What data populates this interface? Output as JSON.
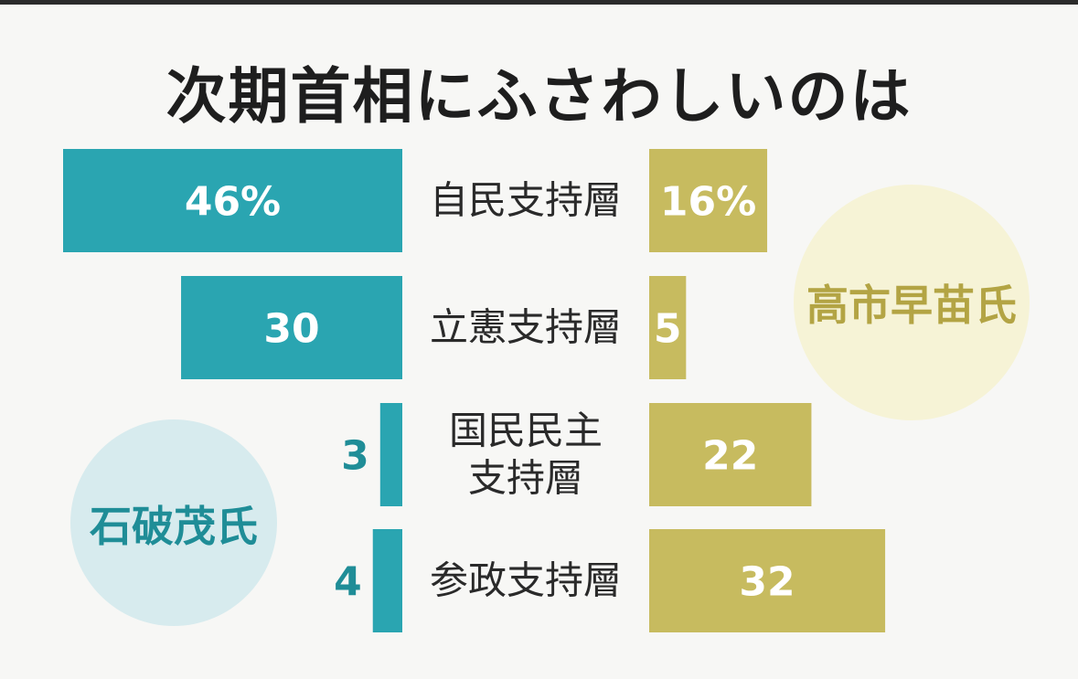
{
  "title": "次期首相にふさわしいのは",
  "colors": {
    "ishiba": "#2aa5b1",
    "takaichi": "#c7bb5f",
    "ishiba_bubble": "#d7ebee",
    "takaichi_bubble": "#f6f3d6",
    "ishiba_label_text": "#1f8d97",
    "takaichi_label_text": "#b3a444",
    "category_text": "#2a2a2a"
  },
  "chart_data": {
    "type": "bar",
    "title": "次期首相にふさわしいのは",
    "categories": [
      [
        "自民支持層"
      ],
      [
        "立憲支持層"
      ],
      [
        "国民民主",
        "支持層"
      ],
      [
        "参政支持層"
      ]
    ],
    "series": [
      {
        "name": "石破茂氏",
        "values": [
          46,
          30,
          3,
          4
        ],
        "labels": [
          "46%",
          "30",
          "3",
          "4"
        ]
      },
      {
        "name": "高市早苗氏",
        "values": [
          16,
          5,
          22,
          32
        ],
        "labels": [
          "16%",
          "5",
          "22",
          "32"
        ]
      }
    ],
    "xlim": [
      0,
      46
    ]
  }
}
